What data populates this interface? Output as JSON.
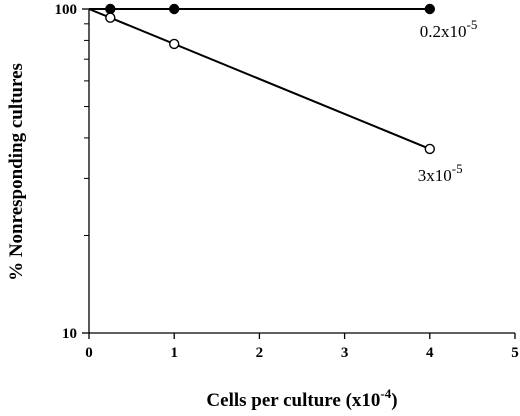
{
  "chart_data": {
    "type": "scatter",
    "xlabel": "Cells per culture (x10",
    "xlabel_sup": "-4",
    "xlabel_tail": ")",
    "ylabel": "% Nonresponding cultures",
    "xlim": [
      0,
      5
    ],
    "ylim": [
      10,
      100
    ],
    "yscale": "log",
    "grid": false,
    "x_ticks": [
      "0",
      "1",
      "2",
      "3",
      "4",
      "5"
    ],
    "y_ticks": [
      "10",
      "100"
    ],
    "series": [
      {
        "marker": "filled-circle",
        "label_base": "0.2x10",
        "label_exp": "-5",
        "points": [
          {
            "x": 0.25,
            "y": 100
          },
          {
            "x": 1,
            "y": 100
          },
          {
            "x": 4,
            "y": 100
          }
        ],
        "fit": [
          [
            0,
            100
          ],
          [
            4,
            100
          ]
        ]
      },
      {
        "marker": "open-circle",
        "label_base": "3x10",
        "label_exp": "-5",
        "points": [
          {
            "x": 0.25,
            "y": 94
          },
          {
            "x": 1,
            "y": 78
          },
          {
            "x": 4,
            "y": 37
          }
        ],
        "fit": [
          [
            0,
            100
          ],
          [
            4,
            37
          ]
        ]
      }
    ]
  }
}
